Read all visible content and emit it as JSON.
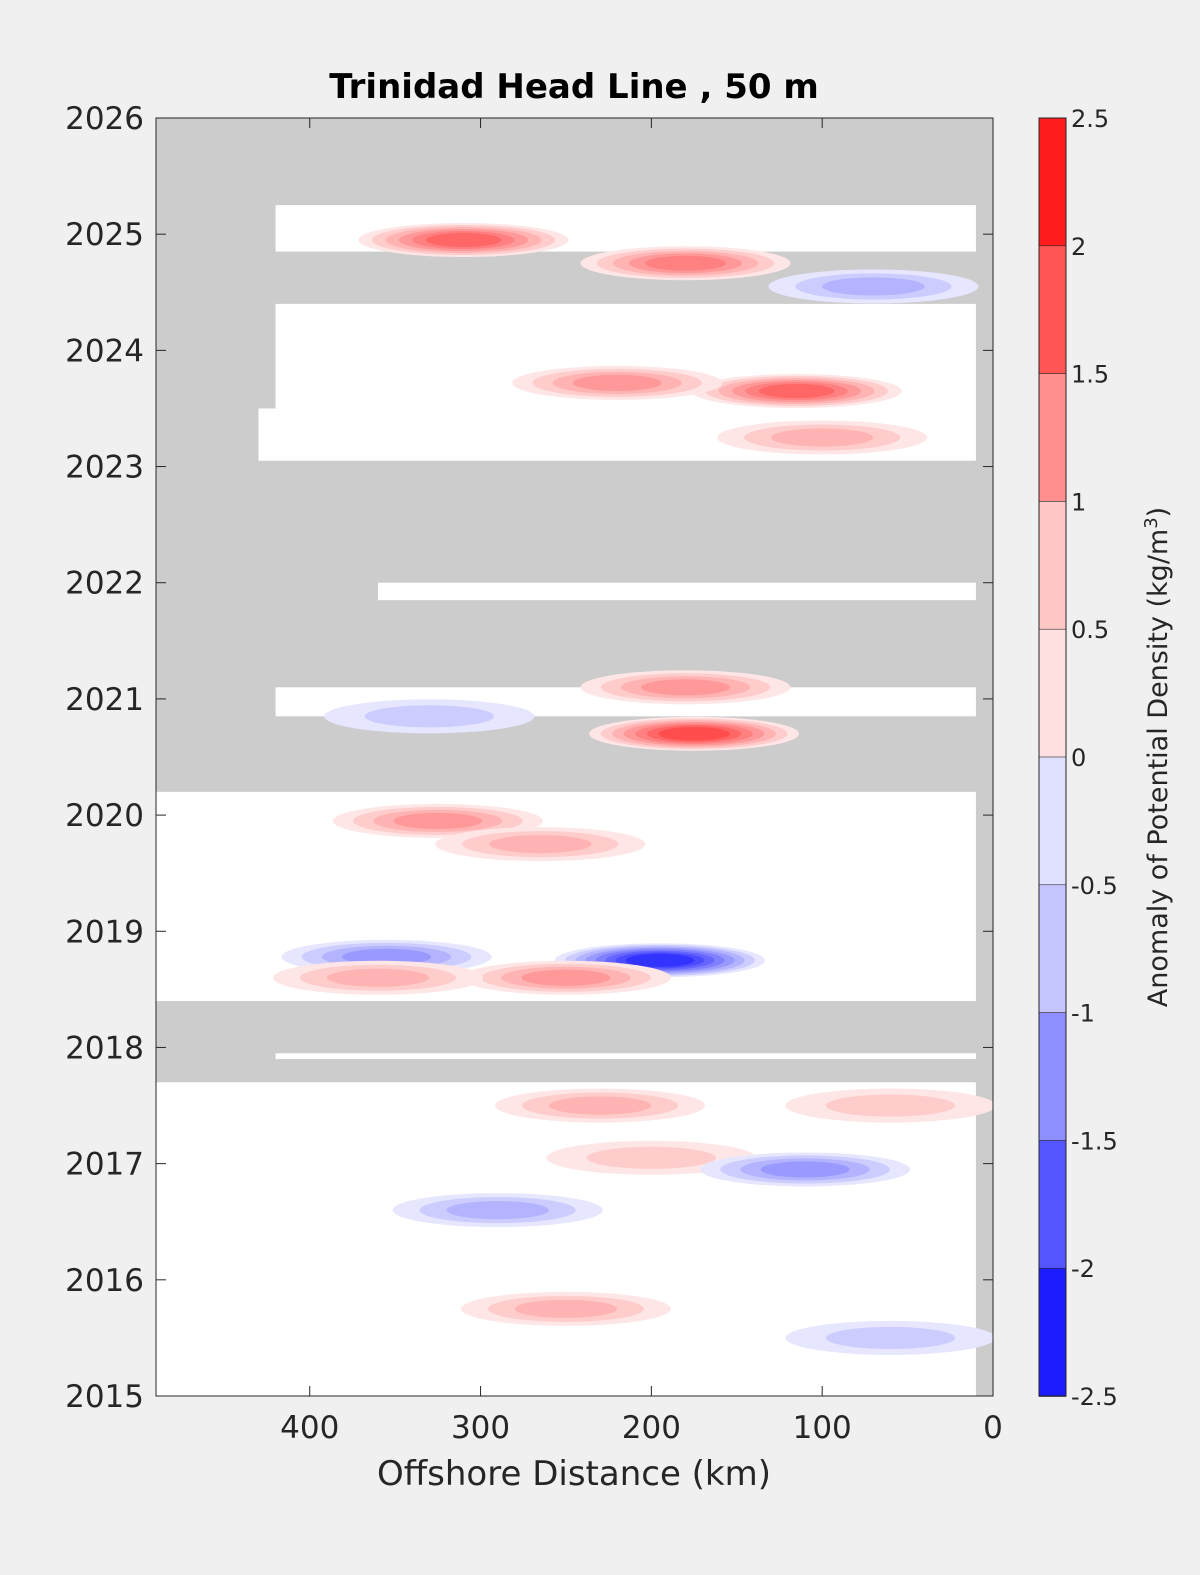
{
  "chart_data": {
    "type": "heatmap",
    "title": "Trinidad Head Line , 50 m",
    "xlabel": "Offshore Distance (km)",
    "ylabel": "",
    "xlim": [
      490,
      0
    ],
    "ylim": [
      2015,
      2026
    ],
    "x_reversed": true,
    "x_ticks": [
      400,
      300,
      200,
      100,
      0
    ],
    "y_ticks": [
      2015,
      2016,
      2017,
      2018,
      2019,
      2020,
      2021,
      2022,
      2023,
      2024,
      2025,
      2026
    ],
    "colorbar": {
      "label": "Anomaly of Potential Density (kg/m³)",
      "label_main": "Anomaly of Potential Density (kg/m",
      "label_sup": "3",
      "label_end": ")",
      "range": [
        -2.5,
        2.5
      ],
      "step": 0.25,
      "ticks": [
        2.5,
        2,
        1.5,
        1,
        0.5,
        0,
        -0.5,
        -1,
        -1.5,
        -2,
        -2.5
      ],
      "tick_labels": [
        "2.5",
        "2",
        "1.5",
        "1",
        "0.5",
        "0",
        "-0.5",
        "-1",
        "-1.5",
        "-2",
        "-2.5"
      ]
    },
    "colors": {
      "no_data": "#cccccc",
      "positive": "#ff0000",
      "negative": "#0000ff",
      "neutral": "#ffffff"
    },
    "data_periods": [
      {
        "x_from": 490,
        "x_to": 10,
        "t_from": 2015.0,
        "t_to": 2017.7
      },
      {
        "x_from": 420,
        "x_to": 10,
        "t_from": 2017.9,
        "t_to": 2017.95
      },
      {
        "x_from": 490,
        "x_to": 10,
        "t_from": 2018.4,
        "t_to": 2020.2
      },
      {
        "x_from": 420,
        "x_to": 10,
        "t_from": 2020.85,
        "t_to": 2021.1
      },
      {
        "x_from": 360,
        "x_to": 10,
        "t_from": 2021.85,
        "t_to": 2022.0
      },
      {
        "x_from": 430,
        "x_to": 10,
        "t_from": 2023.05,
        "t_to": 2023.5
      },
      {
        "x_from": 420,
        "x_to": 10,
        "t_from": 2023.5,
        "t_to": 2024.4
      },
      {
        "x_from": 420,
        "x_to": 10,
        "t_from": 2024.85,
        "t_to": 2025.25
      }
    ],
    "anomalies": [
      {
        "x": 195,
        "t": 2018.75,
        "value": -2.1
      },
      {
        "x": 355,
        "t": 2018.78,
        "value": -1.0
      },
      {
        "x": 250,
        "t": 2018.6,
        "value": 1.0
      },
      {
        "x": 360,
        "t": 2018.6,
        "value": 0.9
      },
      {
        "x": 175,
        "t": 2020.7,
        "value": 1.8
      },
      {
        "x": 180,
        "t": 2021.1,
        "value": 1.1
      },
      {
        "x": 330,
        "t": 2020.85,
        "value": -0.7
      },
      {
        "x": 325,
        "t": 2019.95,
        "value": 1.0
      },
      {
        "x": 265,
        "t": 2019.75,
        "value": 0.9
      },
      {
        "x": 115,
        "t": 2023.65,
        "value": 1.5
      },
      {
        "x": 220,
        "t": 2023.72,
        "value": 1.2
      },
      {
        "x": 180,
        "t": 2024.75,
        "value": 1.3
      },
      {
        "x": 310,
        "t": 2024.95,
        "value": 1.6
      },
      {
        "x": 70,
        "t": 2024.55,
        "value": -0.8
      },
      {
        "x": 100,
        "t": 2023.25,
        "value": 0.9
      },
      {
        "x": 200,
        "t": 2017.05,
        "value": 0.7
      },
      {
        "x": 110,
        "t": 2016.95,
        "value": -1.0
      },
      {
        "x": 290,
        "t": 2016.6,
        "value": -0.8
      },
      {
        "x": 250,
        "t": 2015.75,
        "value": 0.9
      },
      {
        "x": 60,
        "t": 2015.5,
        "value": -0.6
      },
      {
        "x": 230,
        "t": 2017.5,
        "value": 0.8
      },
      {
        "x": 60,
        "t": 2017.5,
        "value": 0.6
      }
    ]
  }
}
